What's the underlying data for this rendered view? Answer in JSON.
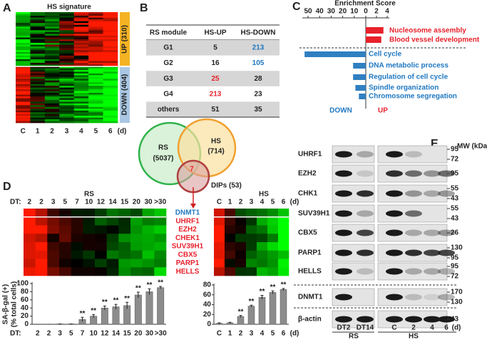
{
  "panel_labels": [
    "A",
    "B",
    "C",
    "D",
    "E"
  ],
  "panel_a": {
    "title": "HS signature",
    "groups": [
      "UP (310)",
      "DOWN (404)"
    ],
    "columns": [
      "C",
      "1",
      "2",
      "3",
      "4",
      "5",
      "6"
    ],
    "unit": "(d)"
  },
  "panel_b": {
    "header": [
      "RS module",
      "HS-UP",
      "HS-DOWN"
    ],
    "rows": [
      [
        "G1",
        "5",
        "213"
      ],
      [
        "G2",
        "16",
        "105"
      ],
      [
        "G3",
        "25",
        "28"
      ],
      [
        "G4",
        "213",
        "23"
      ],
      [
        "others",
        "51",
        "35"
      ]
    ]
  },
  "panel_c": {
    "title": "Enrichment Score",
    "down_xlim": [
      50,
      0
    ],
    "down_xticks": [
      50,
      40,
      30,
      20,
      10,
      0
    ],
    "up_xlim": [
      0,
      4
    ],
    "up_xticks": [
      2,
      4
    ],
    "up": {
      "name": "UP",
      "color": "#e8212b",
      "categories": [
        "Nucleosome assembly",
        "Blood vessel development"
      ],
      "values": [
        3.3,
        2.9
      ]
    },
    "down": {
      "name": "DOWN",
      "color": "#2f7fc1",
      "categories": [
        "Cell cycle",
        "DNA metabolic process",
        "Regulation of cell cycle",
        "Spindle organization",
        "Chromosome segregation"
      ],
      "values": [
        53,
        11,
        11,
        9,
        6
      ]
    }
  },
  "venn": {
    "sets": [
      {
        "name": "RS",
        "count": "(5037)"
      },
      {
        "name": "HS",
        "count": "(714)"
      },
      {
        "name": "DIPs (53)"
      }
    ],
    "overlap": "7"
  },
  "panel_d": {
    "genes": [
      "DNMT1",
      "UHRF1",
      "EZH2",
      "CHEK1",
      "SUV39H1",
      "CBX5",
      "PARP1",
      "HELLS"
    ],
    "ylabel": "SA-β-gal (+)",
    "ylabel_unit": "(% total cells)",
    "rs": {
      "title": "RS",
      "axis_label": "DT:",
      "categories": [
        "2",
        "2",
        "3",
        "5",
        "7",
        "10",
        "12",
        "14",
        "15",
        "20",
        "30",
        ">30"
      ],
      "values": [
        0,
        0,
        1,
        1,
        12,
        20,
        40,
        43,
        46,
        72,
        80,
        90
      ],
      "errors": [
        0,
        0,
        0,
        0,
        5,
        4,
        5,
        6,
        8,
        7,
        7,
        3
      ],
      "annotations": [
        null,
        null,
        null,
        null,
        "**",
        "**",
        "**",
        "**",
        "**",
        "**",
        "**",
        "**"
      ],
      "ylim": [
        0,
        100
      ],
      "yticks": [
        0,
        20,
        40,
        60,
        80,
        100
      ],
      "color": "#8c8c8c"
    },
    "hs": {
      "title": "HS",
      "unit": "(d)",
      "categories": [
        "C",
        "1",
        "2",
        "3",
        "4",
        "5",
        "6"
      ],
      "values": [
        2,
        3,
        16,
        37,
        55,
        65,
        71
      ],
      "errors": [
        1,
        1,
        2,
        2,
        4,
        3,
        2
      ],
      "annotations": [
        null,
        null,
        "**",
        "**",
        "**",
        "**",
        "**"
      ],
      "ylim": [
        0,
        80
      ],
      "yticks": [
        0,
        20,
        40,
        60,
        80
      ],
      "color": "#8c8c8c"
    }
  },
  "panel_e": {
    "mw_title": "MW (kDa)",
    "proteins": [
      {
        "name": "UHRF1",
        "mw": [
          95,
          72
        ]
      },
      {
        "name": "EZH2",
        "mw": [
          95
        ]
      },
      {
        "name": "CHK1",
        "mw": [
          55,
          43
        ]
      },
      {
        "name": "SUV39H1",
        "mw": [
          55,
          43
        ]
      },
      {
        "name": "CBX5",
        "mw": [
          26
        ]
      },
      {
        "name": "PARP1",
        "mw": [
          130,
          95
        ]
      },
      {
        "name": "HELLS",
        "mw": [
          95,
          72
        ]
      },
      {
        "name": "DNMT1",
        "mw": [
          170,
          130
        ]
      },
      {
        "name": "β-actin",
        "mw": [
          43
        ]
      }
    ],
    "lanes_rs": [
      "DT2",
      "DT14"
    ],
    "lanes_hs": [
      "C",
      "2",
      "4",
      "6"
    ],
    "hs_unit": "(d)",
    "groups": [
      "RS",
      "HS"
    ]
  }
}
